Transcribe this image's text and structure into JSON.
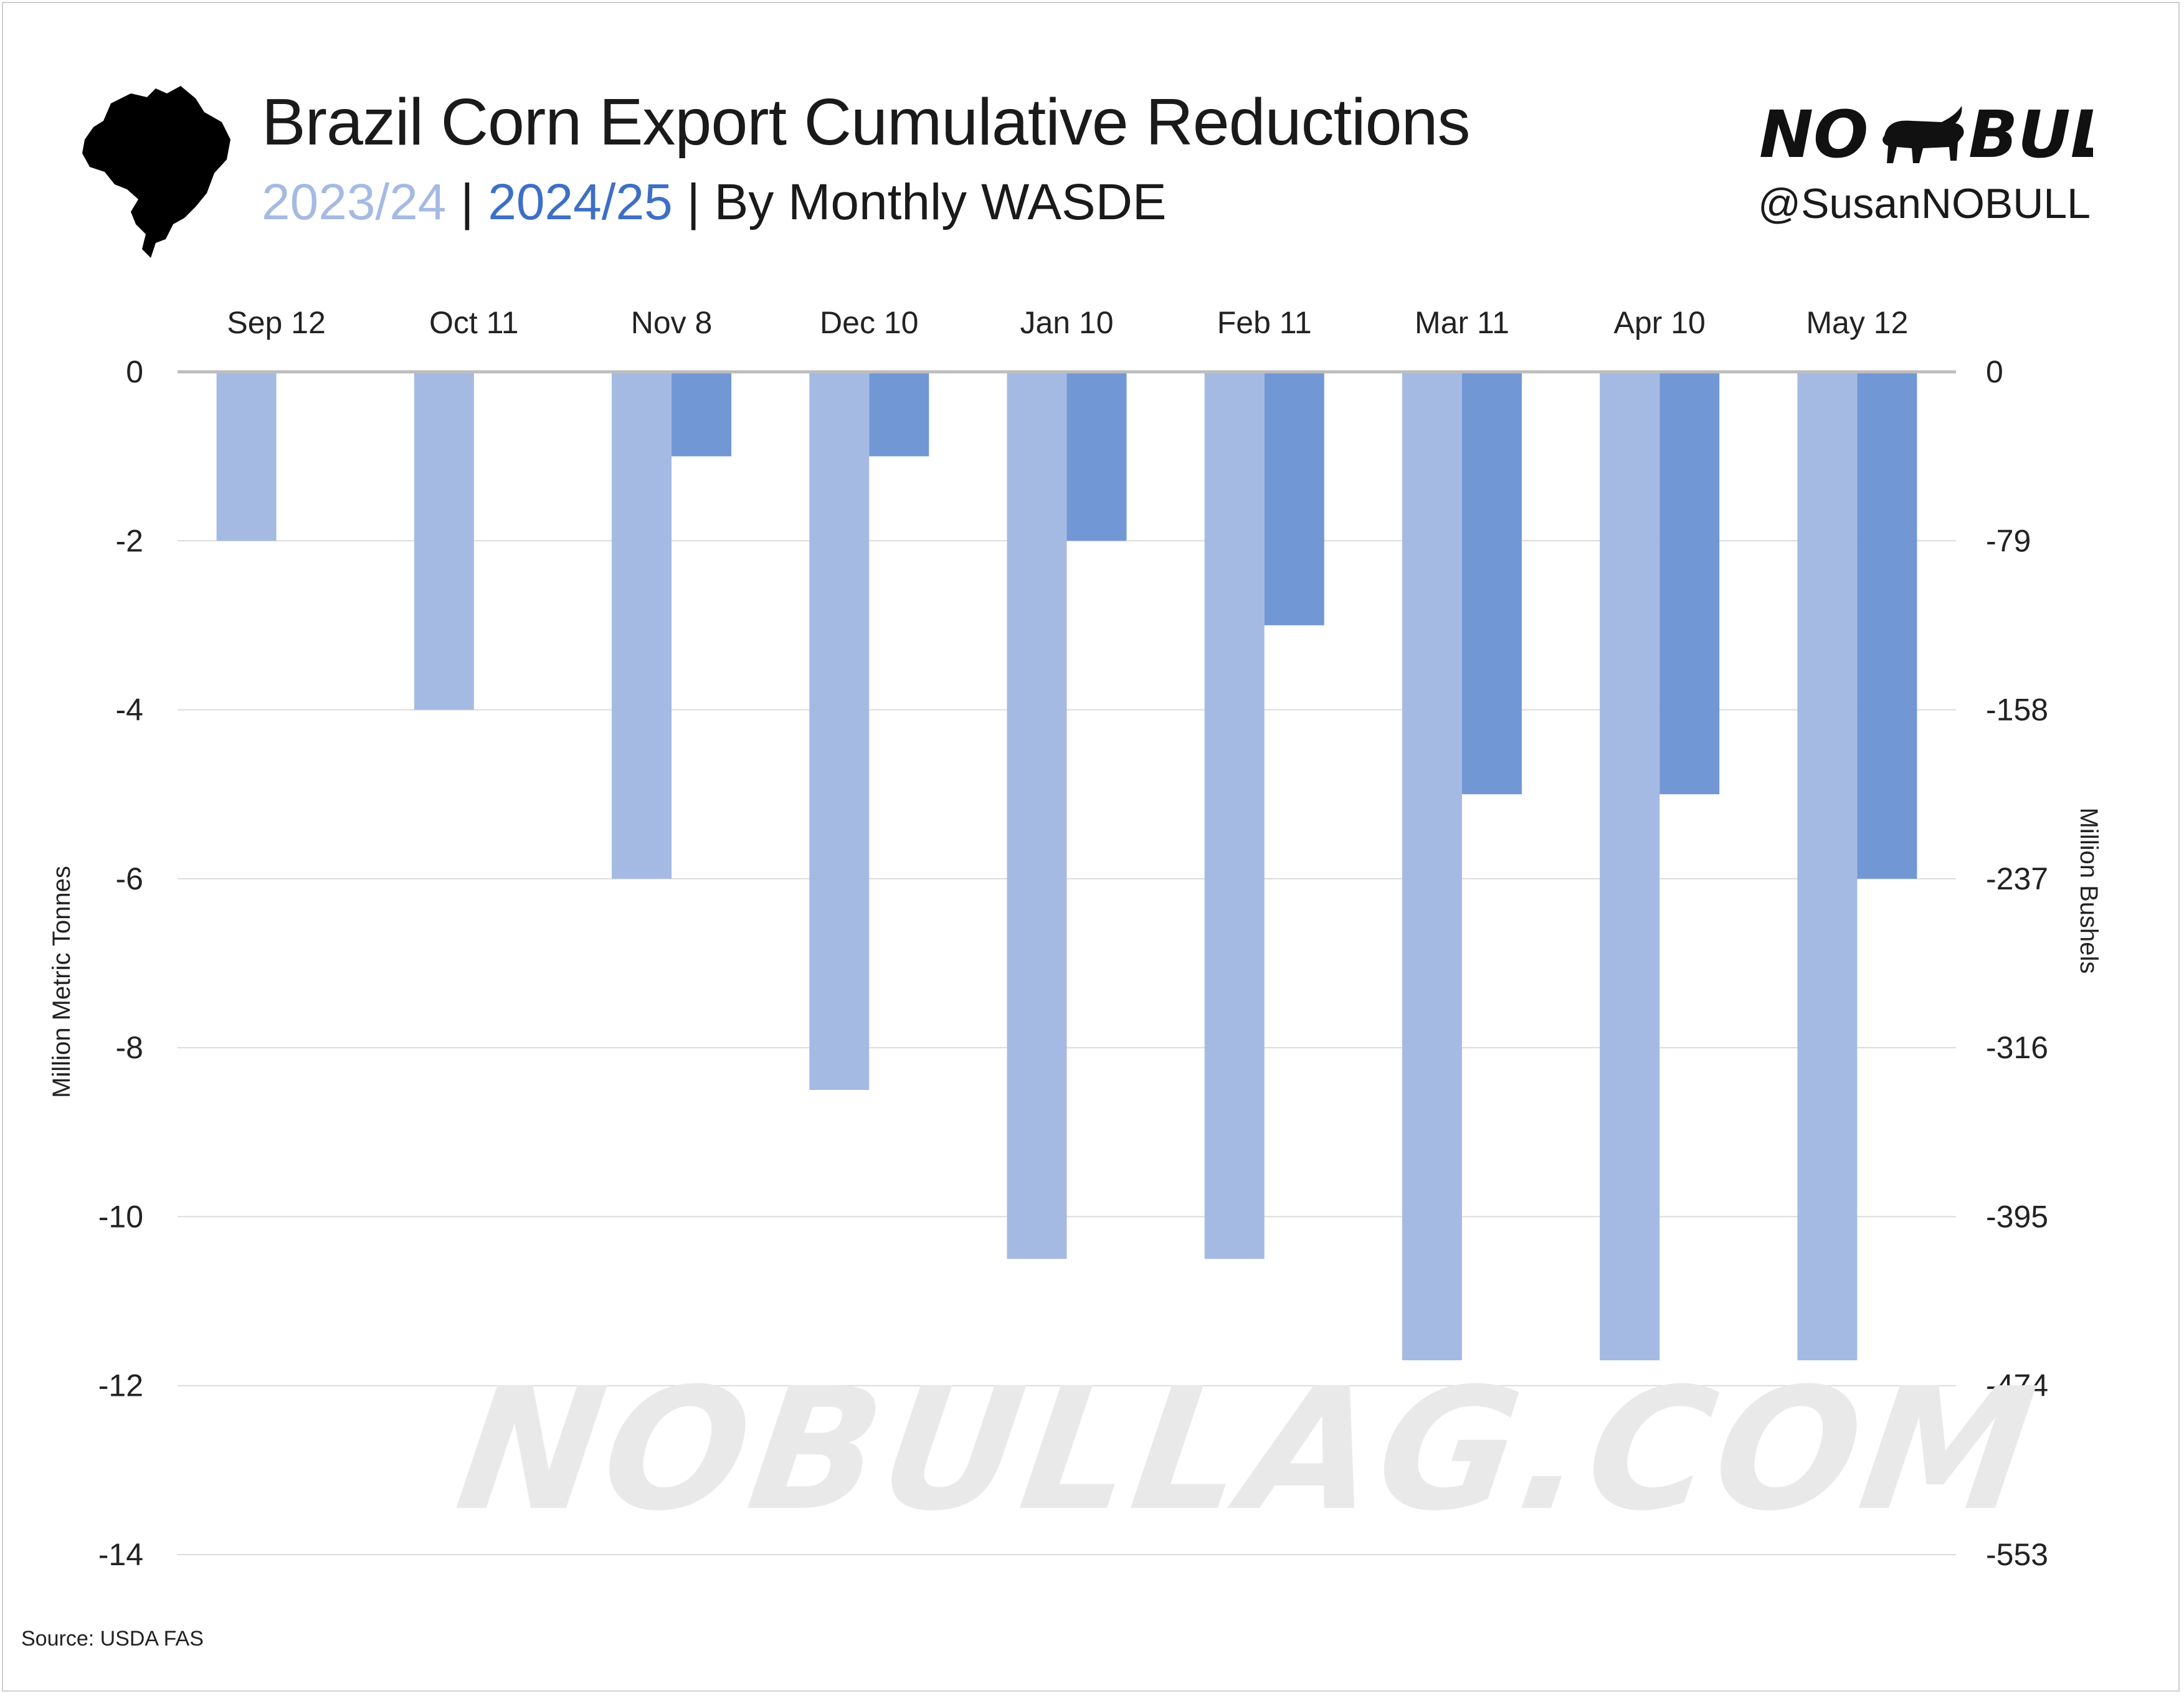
{
  "header": {
    "title": "Brazil Corn Export Cumulative Reductions",
    "subtitle_series1": "2023/24",
    "subtitle_sep1": " | ",
    "subtitle_series2": "2024/25",
    "subtitle_rest": " | By Monthly WASDE",
    "brand_text": "NO BULL",
    "handle": "@SusanNOBULL"
  },
  "watermark": "NOBULLAG.COM",
  "source": "Source: USDA FAS",
  "icons": {
    "map": "brazil-map-icon",
    "logo": "bull-icon"
  },
  "colors": {
    "series_2023_24": "#a5bae3",
    "series_2024_25": "#7297d5",
    "zero_line": "#bdbdbd",
    "grid": "#dcdcdc"
  },
  "chart_data": {
    "type": "bar",
    "categories": [
      "Sep 12",
      "Oct 11",
      "Nov 8",
      "Dec 10",
      "Jan 10",
      "Feb 11",
      "Mar 11",
      "Apr 10",
      "May 12"
    ],
    "series": [
      {
        "name": "2023/24",
        "values": [
          -2,
          -4,
          -6,
          -8.5,
          -10.5,
          -10.5,
          -11.7,
          -11.7,
          -11.7
        ]
      },
      {
        "name": "2024/25",
        "values": [
          null,
          null,
          -1,
          -1,
          -2,
          -3,
          -5,
          -5,
          -6
        ]
      }
    ],
    "ylabel": "Million Metric Tonnes",
    "y2label": "Million Bushels",
    "ylim": [
      -14,
      0
    ],
    "yticks": [
      "0",
      "-2",
      "-4",
      "-6",
      "-8",
      "-10",
      "-12",
      "-14"
    ],
    "y2ticks": [
      "0",
      "-79",
      "-158",
      "-237",
      "-316",
      "-395",
      "-474",
      "-553"
    ],
    "grid": true,
    "category_labels_position": "top"
  }
}
